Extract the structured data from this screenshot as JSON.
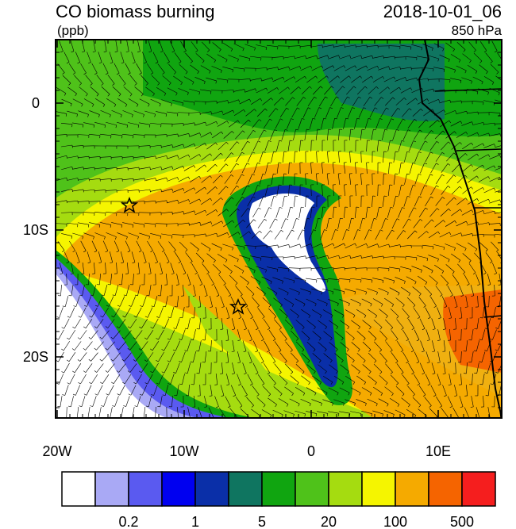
{
  "header": {
    "title": "CO biomass burning",
    "units": "(ppb)",
    "time": "2018-10-01_06",
    "level": "850 hPa"
  },
  "map": {
    "x_labels": [
      "20W",
      "10W",
      "0",
      "10E"
    ],
    "y_labels": [
      "0",
      "10S",
      "20S"
    ]
  },
  "colorbar": {
    "colors": [
      "#ffffff",
      "#a9a9f5",
      "#5a5af0",
      "#0000f0",
      "#0a2fa8",
      "#0f7560",
      "#10a510",
      "#4fc21a",
      "#a5dc10",
      "#f5f500",
      "#f5aa00",
      "#f56400",
      "#f51e1e"
    ],
    "labels": [
      "0.2",
      "1",
      "5",
      "20",
      "100",
      "500"
    ]
  }
}
